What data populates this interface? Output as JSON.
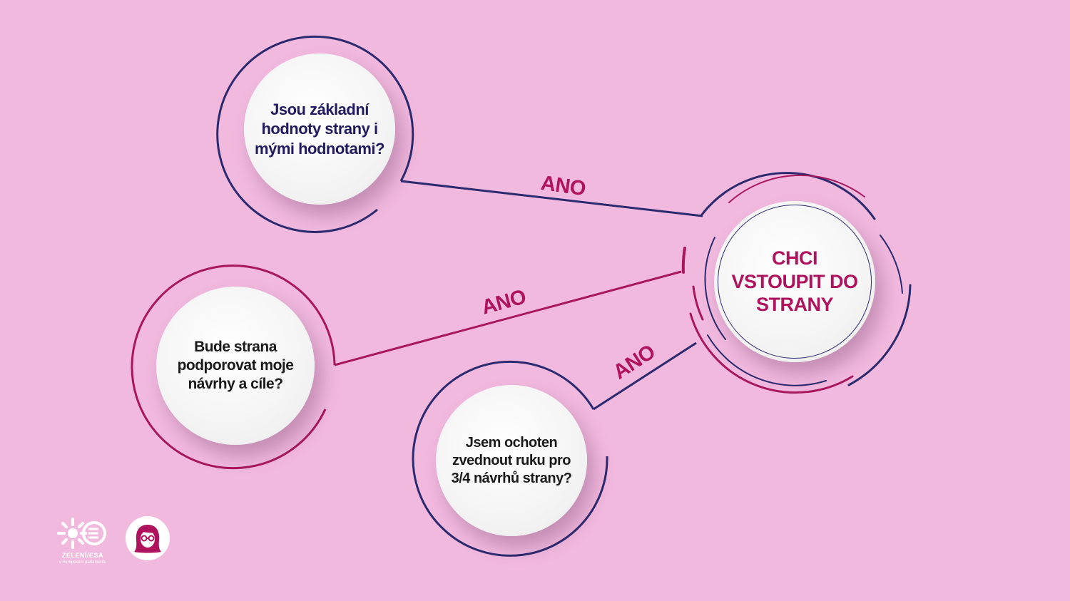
{
  "nodes": {
    "q1": "Jsou základní hodnoty strany i mými hodnotami?",
    "q2": "Bude strana podporovat moje návrhy a cíle?",
    "q3": "Jsem ochoten zvednout ruku pro 3/4 návrhů strany?",
    "goal": "CHCI VSTOUPIT DO STRANY"
  },
  "edges": {
    "e1": "ANO",
    "e2": "ANO",
    "e3": "ANO"
  },
  "logos": {
    "greens_brand": "ZELENÍ/ESA",
    "greens_sub": "v Evropském parlamentu",
    "greens_icon": "sunflower-logo-icon",
    "avatar_icon": "woman-with-glasses-avatar-icon"
  },
  "colors": {
    "background": "#f2b9df",
    "navy": "#2b2a6e",
    "magenta": "#b0135e",
    "bubble": "#f4f4f4"
  }
}
